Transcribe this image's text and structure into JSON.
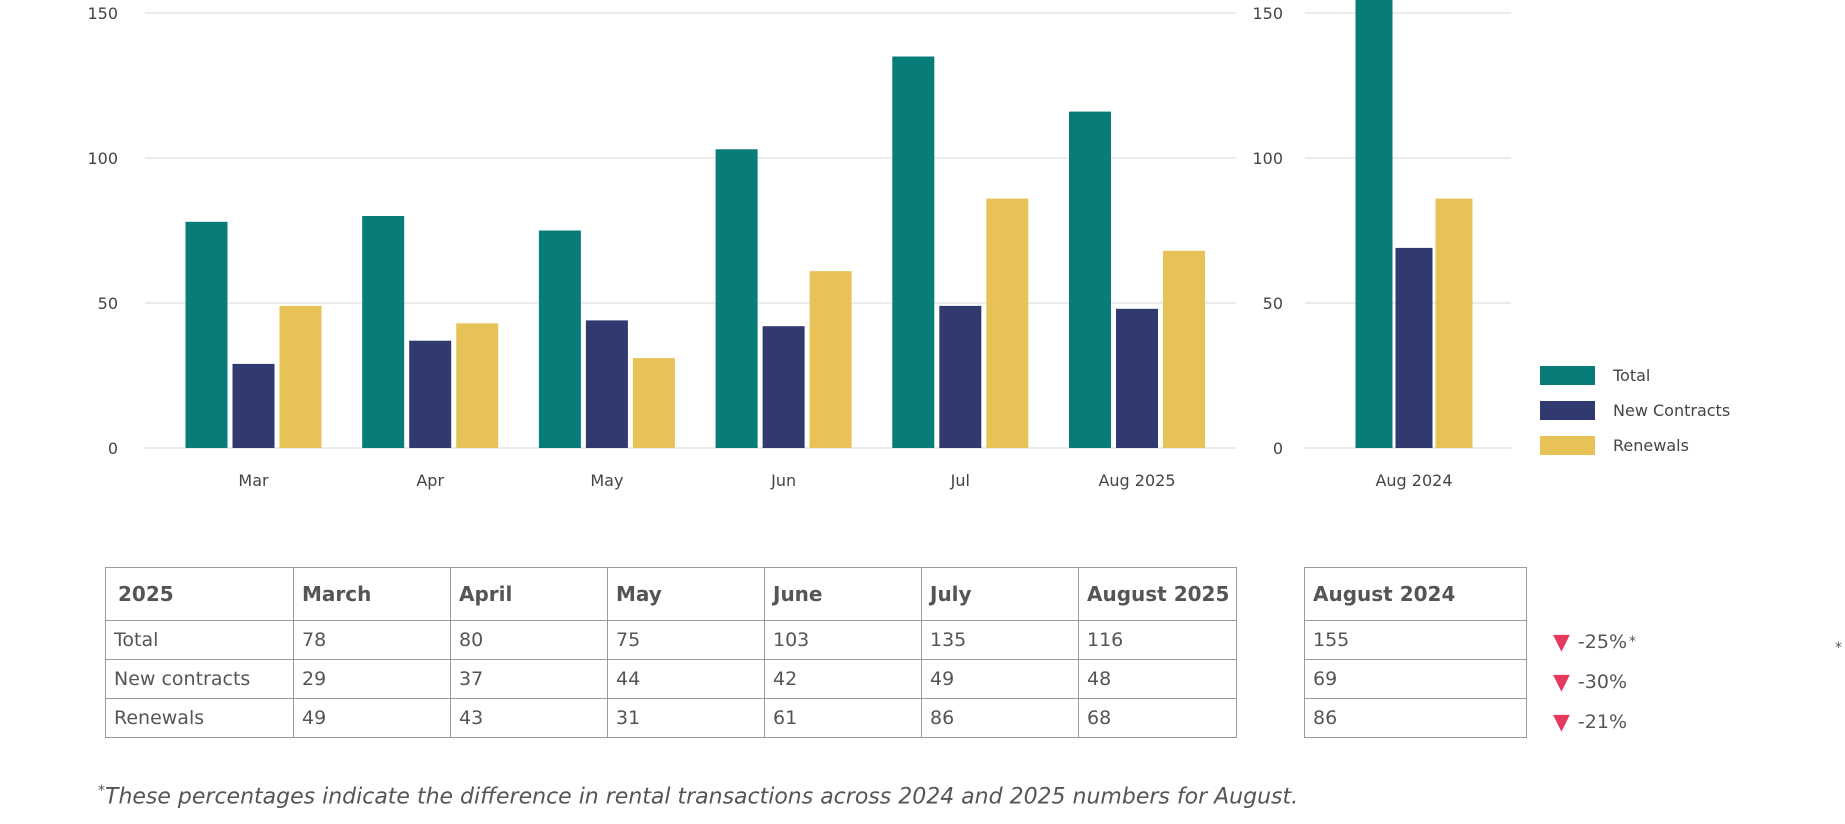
{
  "colors": {
    "total": "#087c78",
    "new_contracts": "#303a6e",
    "renewals": "#e6c257"
  },
  "chart_data": [
    {
      "type": "bar",
      "categories": [
        "Mar",
        "Apr",
        "May",
        "Jun",
        "Jul",
        "Aug 2025"
      ],
      "series": [
        {
          "name": "Total",
          "values": [
            78,
            80,
            75,
            103,
            135,
            116
          ]
        },
        {
          "name": "New Contracts",
          "values": [
            29,
            37,
            44,
            42,
            49,
            48
          ]
        },
        {
          "name": "Renewals",
          "values": [
            49,
            43,
            31,
            61,
            86,
            68
          ]
        }
      ],
      "ylim": [
        0,
        150
      ],
      "yticks": [
        0,
        50,
        100,
        150
      ],
      "grid": true
    },
    {
      "type": "bar",
      "categories": [
        "Aug 2024"
      ],
      "series": [
        {
          "name": "Total",
          "values": [
            155
          ]
        },
        {
          "name": "New Contracts",
          "values": [
            69
          ]
        },
        {
          "name": "Renewals",
          "values": [
            86
          ]
        }
      ],
      "ylim": [
        0,
        150
      ],
      "yticks": [
        0,
        50,
        100,
        150
      ],
      "grid": true,
      "legend_position": "right"
    }
  ],
  "legend": [
    "Total",
    "New Contracts",
    "Renewals"
  ],
  "table_2025": {
    "headers": [
      "2025",
      "March",
      "April",
      "May",
      "June",
      "July",
      "August 2025"
    ],
    "rows": [
      [
        "Total",
        "78",
        "80",
        "75",
        "103",
        "135",
        "116"
      ],
      [
        "New contracts",
        "29",
        "37",
        "44",
        "42",
        "49",
        "48"
      ],
      [
        "Renewals",
        "49",
        "43",
        "31",
        "61",
        "86",
        "68"
      ]
    ]
  },
  "table_2024": {
    "header": "August 2024",
    "rows": [
      "155",
      "69",
      "86"
    ]
  },
  "changes": [
    {
      "arrow": "▼",
      "value": "-25%",
      "star": "*"
    },
    {
      "arrow": "▼",
      "value": "-30%",
      "star": ""
    },
    {
      "arrow": "▼",
      "value": "-21%",
      "star": ""
    }
  ],
  "edge_star": "*",
  "footnote": {
    "star": "*",
    "text": "These percentages indicate the difference in rental transactions across 2024 and 2025 numbers for August."
  }
}
